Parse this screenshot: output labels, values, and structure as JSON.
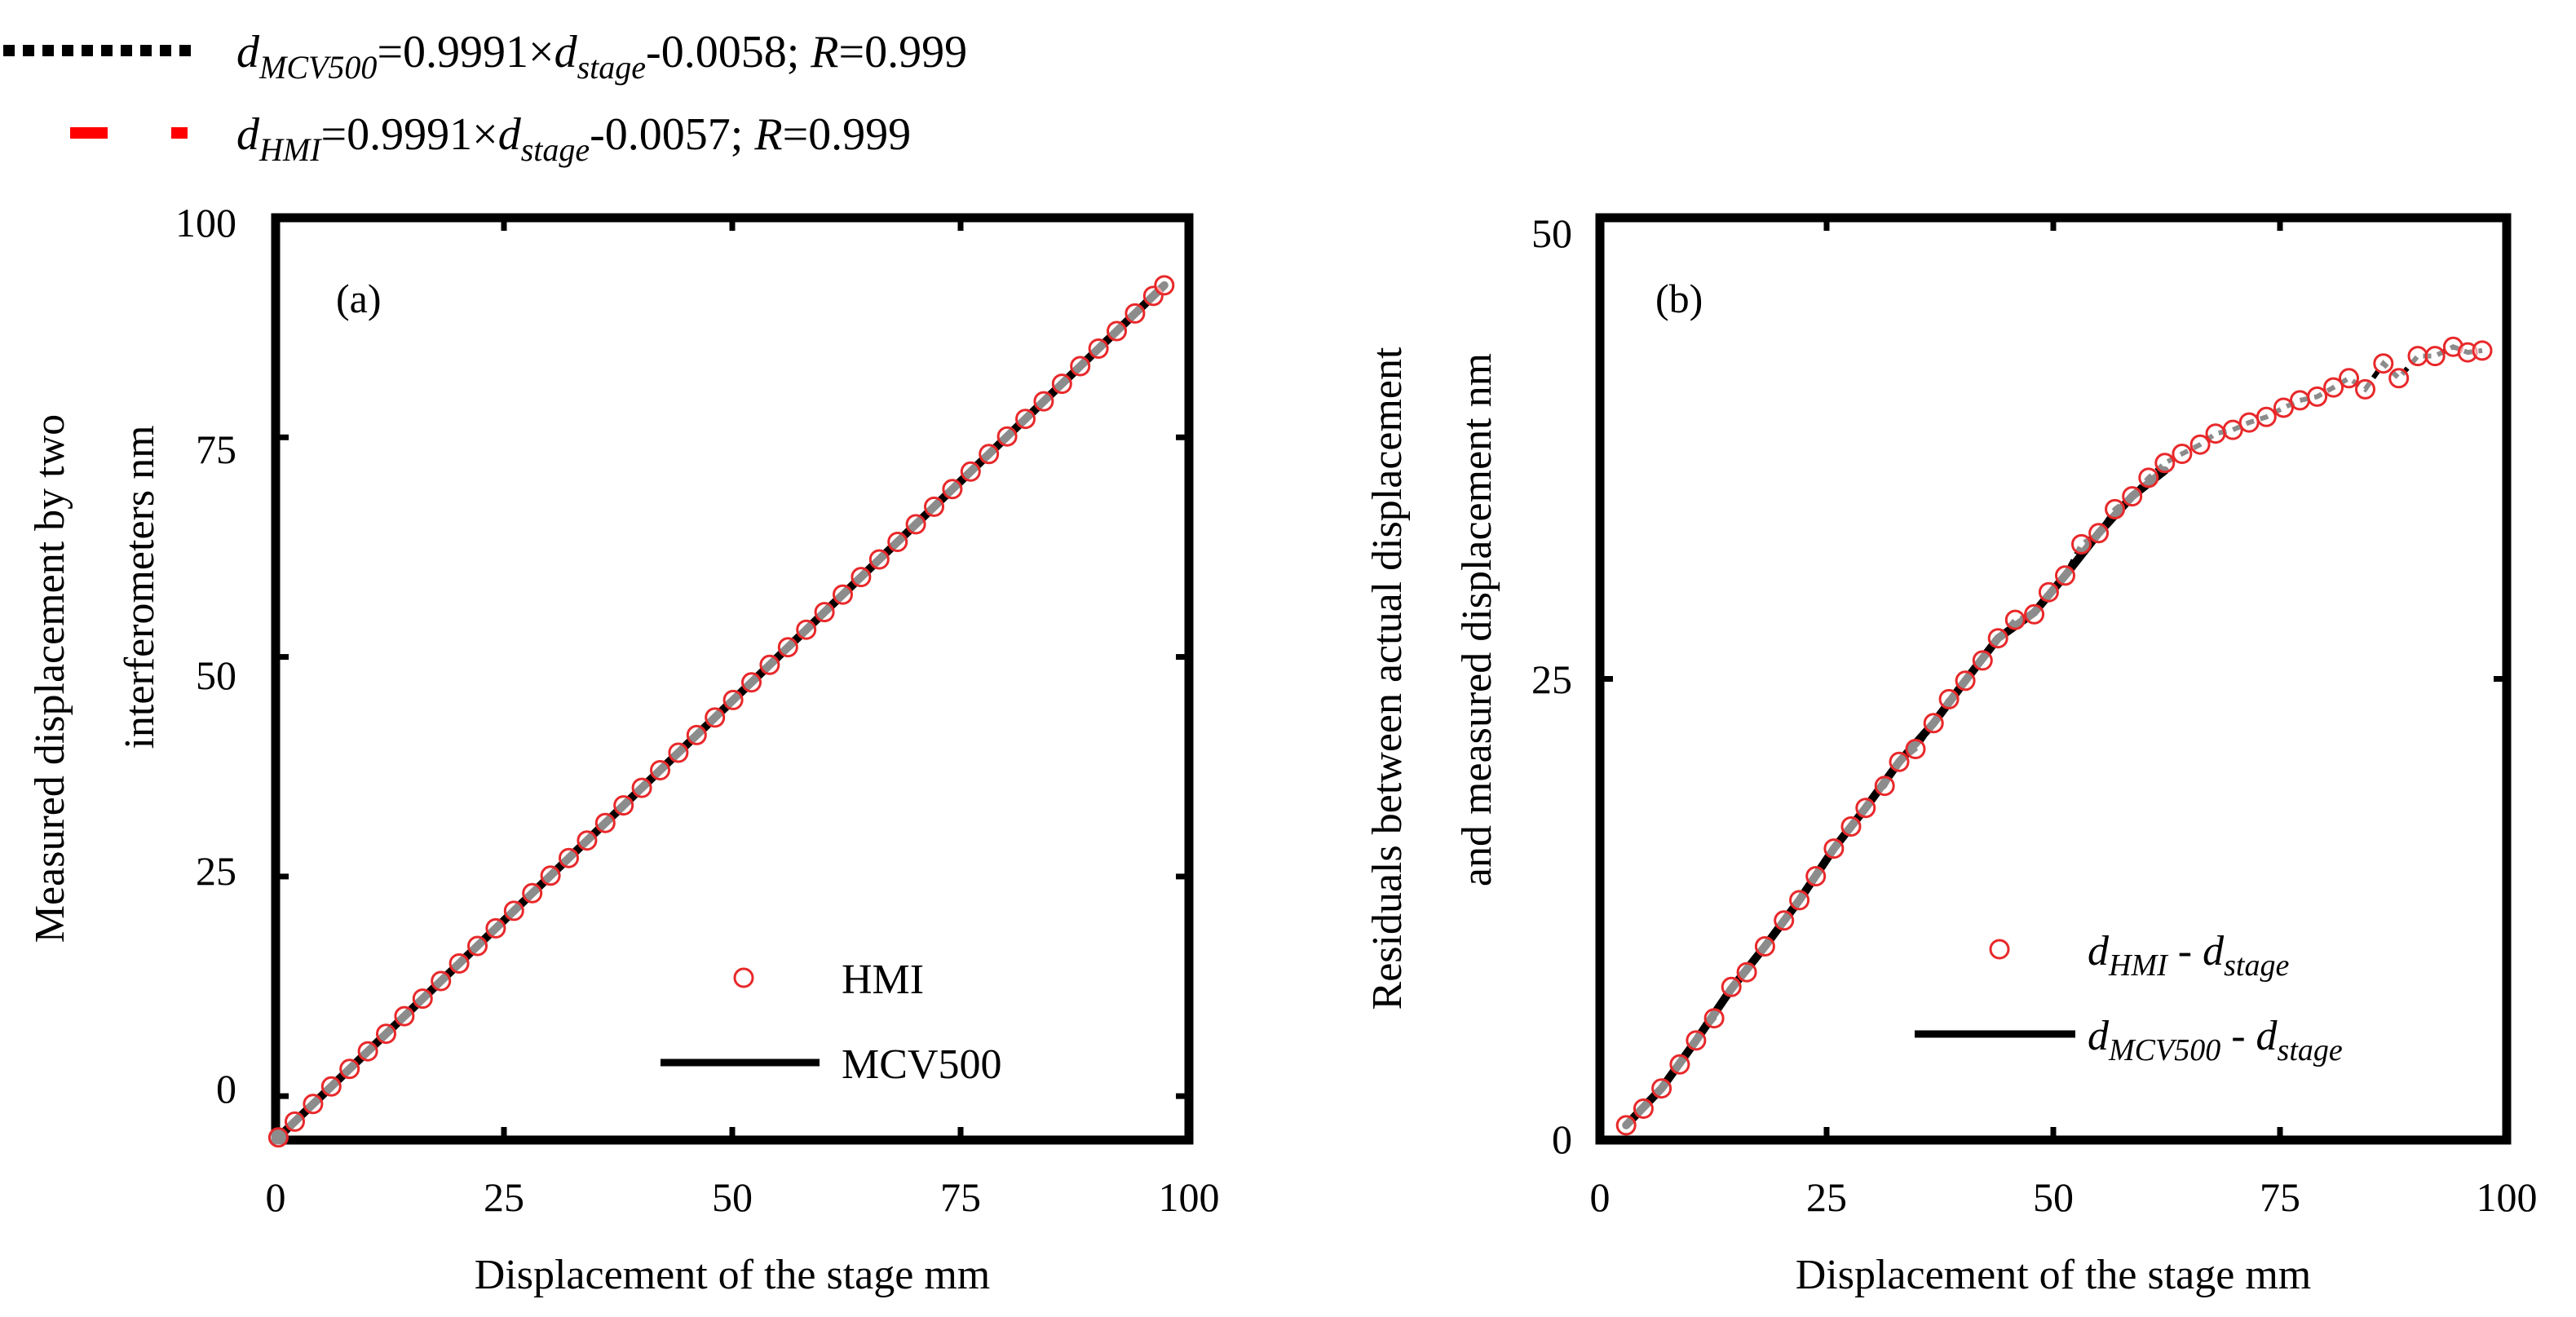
{
  "colors": {
    "hmi_marker": "#e8282a",
    "mcv500_line": "#000000",
    "eq_red": "#ff0000"
  },
  "top_legend": {
    "eq1": {
      "d": "d",
      "sub": "MCV500",
      "mid": "=0.9991×",
      "d2": "d",
      "sub2": "stage",
      "tail": "-0.0058; ",
      "r": "R",
      "rval": "=0.999"
    },
    "eq2": {
      "d": "d",
      "sub": "HMI",
      "mid": "=0.9991×",
      "d2": "d",
      "sub2": "stage",
      "tail": "-0.0057; ",
      "r": "R",
      "rval": "=0.999"
    }
  },
  "chart_data": [
    {
      "type": "line+scatter",
      "panel_label": "(a)",
      "xlabel": "Displacement  of the stage    mm",
      "ylabel_line1": "Measured displacement  by two",
      "ylabel_line2": "interferometers     nm",
      "xlim": [
        0,
        100
      ],
      "ylim": [
        -5,
        100
      ],
      "xticks": [
        "0",
        "25",
        "50",
        "75",
        "100"
      ],
      "yticks": [
        "0",
        "25",
        "50",
        "75",
        "100"
      ],
      "legend": {
        "hmi": "HMI",
        "mcv500": "MCV500"
      },
      "series": [
        {
          "name": "HMI",
          "style": "marker",
          "x": [
            0.3,
            2.1,
            4.1,
            6.1,
            8.1,
            10.1,
            12.1,
            14.1,
            16.1,
            18.1,
            20.1,
            22.1,
            24.1,
            26.1,
            28.1,
            30.1,
            32.1,
            34.1,
            36.1,
            38.1,
            40.1,
            42.1,
            44.1,
            46.1,
            48.1,
            50.1,
            52.1,
            54.1,
            56.1,
            58.1,
            60.1,
            62.1,
            64.1,
            66.1,
            68.1,
            70.1,
            72.1,
            74.1,
            76.1,
            78.1,
            80.1,
            82.1,
            84.1,
            86.1,
            88.1,
            90.1,
            92.1,
            94.1,
            96.1,
            97.3
          ],
          "y": [
            -4.7,
            -2.9,
            -0.9,
            1.1,
            3.1,
            5.1,
            7.1,
            9.1,
            11.1,
            13.1,
            15.1,
            17.1,
            19.1,
            21.1,
            23.1,
            25.1,
            27.1,
            29.1,
            31.1,
            33.1,
            35.1,
            37.1,
            39.1,
            41.1,
            43.1,
            45.1,
            47.1,
            49.1,
            51.1,
            53.1,
            55.1,
            57.1,
            59.1,
            61.1,
            63.1,
            65.1,
            67.1,
            69.1,
            71.1,
            73.1,
            75.1,
            77.1,
            79.1,
            81.1,
            83.1,
            85.1,
            87.1,
            89.1,
            91.1,
            92.3
          ]
        },
        {
          "name": "MCV500",
          "style": "line",
          "x": [
            0,
            97.3
          ],
          "y": [
            -5.0,
            92.3
          ]
        }
      ]
    },
    {
      "type": "line+scatter",
      "panel_label": "(b)",
      "xlabel": "Displacement  of the stage    mm",
      "ylabel_line1": "Residuals  between  actual displacement",
      "ylabel_line2": "and measured  displacement     nm",
      "xlim": [
        0,
        100
      ],
      "ylim": [
        0,
        50
      ],
      "xticks": [
        "0",
        "25",
        "50",
        "75",
        "100"
      ],
      "yticks": [
        "0",
        "25",
        "50"
      ],
      "legend": {
        "hmi": {
          "d": "d",
          "sub": "HMI",
          "mid": " - ",
          "d2": "d",
          "sub2": "stage"
        },
        "mcv500": {
          "d": "d",
          "sub": "MCV500",
          "mid": " - ",
          "d2": "d",
          "sub2": "stage"
        }
      },
      "series": [
        {
          "name": "d_HMI - d_stage",
          "style": "marker",
          "x": [
            2.9,
            4.8,
            6.8,
            8.8,
            10.6,
            12.6,
            14.5,
            16.2,
            18.2,
            20.3,
            22.0,
            23.8,
            25.8,
            27.7,
            29.3,
            31.4,
            33.0,
            34.8,
            36.8,
            38.5,
            40.3,
            42.2,
            43.9,
            45.8,
            47.9,
            49.5,
            51.3,
            53.1,
            55.0,
            56.8,
            58.7,
            60.5,
            62.3,
            64.2,
            66.2,
            67.9,
            69.8,
            71.6,
            73.5,
            75.4,
            77.2,
            79.1,
            80.9,
            82.6,
            84.4,
            86.4,
            88.1,
            90.2,
            92.1,
            94.1,
            95.7,
            97.3
          ],
          "y": [
            0.8,
            1.7,
            2.8,
            4.1,
            5.4,
            6.6,
            8.3,
            9.1,
            10.5,
            11.9,
            13.0,
            14.3,
            15.8,
            17.0,
            18.0,
            19.2,
            20.5,
            21.2,
            22.6,
            23.9,
            24.9,
            26.0,
            27.2,
            28.2,
            28.5,
            29.7,
            30.6,
            32.3,
            32.9,
            34.2,
            34.9,
            35.9,
            36.7,
            37.2,
            37.7,
            38.3,
            38.5,
            38.9,
            39.2,
            39.7,
            40.1,
            40.3,
            40.8,
            41.3,
            40.7,
            42.1,
            41.3,
            42.5,
            42.5,
            43.0,
            42.7,
            42.8
          ]
        },
        {
          "name": "d_MCV500 - d_stage",
          "style": "line",
          "x": [
            2.9,
            6.8,
            10.6,
            14.5,
            18.2,
            22.0,
            25.8,
            29.3,
            33.0,
            36.8,
            40.3,
            43.9,
            47.9,
            51.3,
            55.0,
            58.7,
            62.3
          ],
          "y": [
            0.8,
            2.8,
            5.4,
            8.2,
            10.5,
            13.0,
            15.8,
            18.0,
            20.5,
            22.6,
            24.9,
            27.2,
            28.6,
            30.6,
            32.9,
            34.9,
            36.3
          ]
        }
      ]
    }
  ]
}
